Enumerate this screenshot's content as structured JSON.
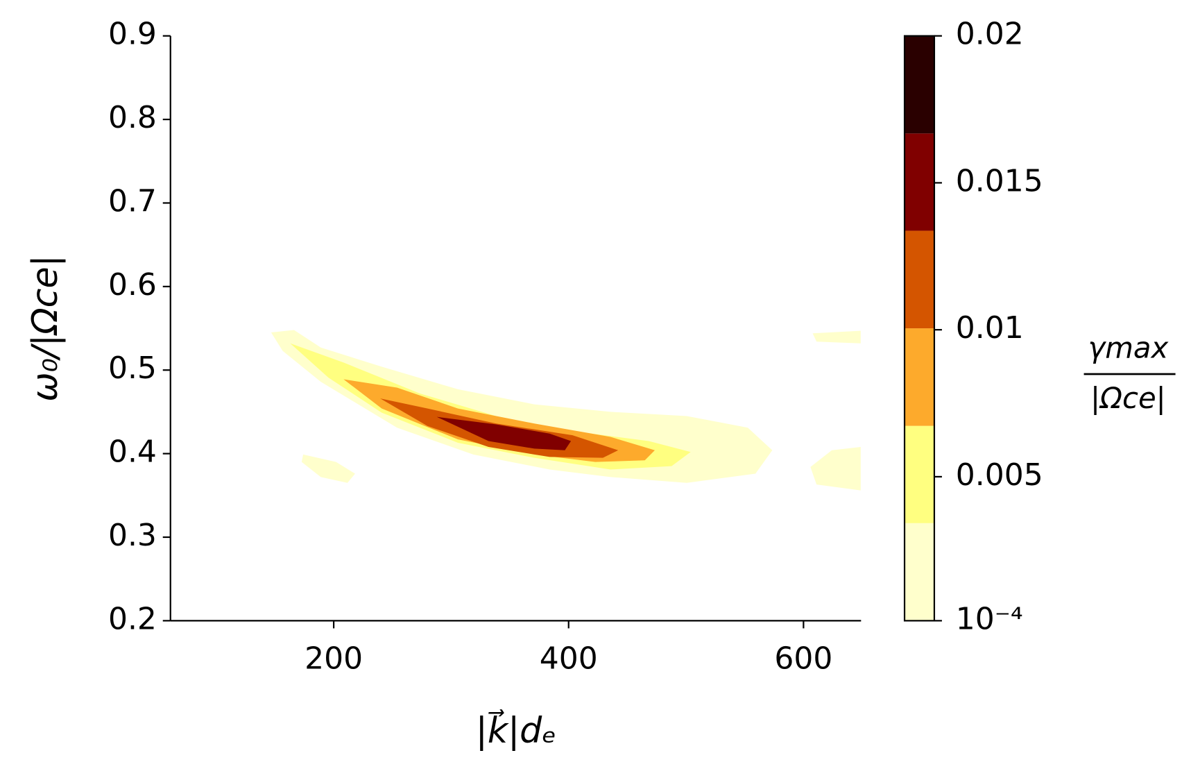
{
  "chart_data": {
    "type": "contourf",
    "xlabel": "|k⃗|dₑ",
    "ylabel": "ω₀/|Ωce|",
    "xlim": [
      61,
      649
    ],
    "xticks": [
      200,
      400,
      600
    ],
    "ylim": [
      0.2,
      0.9
    ],
    "yticks": [
      0.2,
      0.3,
      0.4,
      0.5,
      0.6,
      0.7,
      0.8,
      0.9
    ],
    "levels": [
      0.0001,
      0.00342,
      0.00673,
      0.01005,
      0.01337,
      0.01668,
      0.02
    ],
    "colors": [
      "#ffffcc",
      "#ffff80",
      "#fdaa2c",
      "#d45500",
      "#800000",
      "#2a0000"
    ],
    "regions": [
      {
        "level": 0,
        "x": [
          146.7,
          166.2,
          189.0,
          240.9,
          305.8,
          370.8,
          435.7,
          500.6,
          552.6,
          573.4,
          559.1,
          500.6,
          435.7,
          383.8,
          318.8,
          253.9,
          189.0,
          156.5
        ],
        "y": [
          0.545,
          0.548,
          0.527,
          0.504,
          0.477,
          0.459,
          0.45,
          0.445,
          0.431,
          0.404,
          0.376,
          0.365,
          0.372,
          0.381,
          0.399,
          0.431,
          0.486,
          0.523
        ]
      },
      {
        "level": 0,
        "x": [
          174.0,
          202.0,
          218.2,
          211.7,
          189.0,
          172.7
        ],
        "y": [
          0.399,
          0.39,
          0.376,
          0.365,
          0.372,
          0.39
        ]
      },
      {
        "level": 0,
        "x": [
          648.7,
          624.1,
          605.9,
          611.1,
          648.7
        ],
        "y": [
          0.408,
          0.404,
          0.384,
          0.363,
          0.356
        ]
      },
      {
        "level": 0,
        "x": [
          607.8,
          648.7,
          648.7,
          611.1
        ],
        "y": [
          0.544,
          0.547,
          0.532,
          0.534
        ]
      },
      {
        "level": 1,
        "x": [
          163.0,
          208.4,
          273.4,
          338.3,
          403.3,
          468.2,
          503.9,
          487.7,
          435.7,
          370.8,
          305.8,
          240.9,
          195.5
        ],
        "y": [
          0.532,
          0.509,
          0.472,
          0.445,
          0.427,
          0.415,
          0.402,
          0.385,
          0.381,
          0.395,
          0.413,
          0.449,
          0.491
        ]
      },
      {
        "level": 2,
        "x": [
          208.4,
          253.9,
          305.8,
          370.8,
          435.7,
          473.4,
          464.9,
          422.7,
          370.8,
          305.8,
          240.9
        ],
        "y": [
          0.489,
          0.479,
          0.454,
          0.436,
          0.42,
          0.404,
          0.392,
          0.39,
          0.399,
          0.417,
          0.454
        ]
      },
      {
        "level": 3,
        "x": [
          239.6,
          279.9,
          338.3,
          403.3,
          442.2,
          429.2,
          383.8,
          331.8,
          279.9
        ],
        "y": [
          0.466,
          0.454,
          0.436,
          0.422,
          0.404,
          0.395,
          0.396,
          0.408,
          0.433
        ]
      },
      {
        "level": 4,
        "x": [
          287.7,
          338.3,
          383.8,
          402.0,
          396.8,
          370.8,
          331.8
        ],
        "y": [
          0.444,
          0.435,
          0.424,
          0.415,
          0.404,
          0.406,
          0.415
        ]
      }
    ],
    "colorbar": {
      "label_num": "γmax",
      "label_den": "|Ωce|",
      "ticks": [
        {
          "value": 0.0001,
          "label": "10⁻⁴"
        },
        0.005,
        0.01,
        0.015,
        0.02
      ]
    }
  }
}
